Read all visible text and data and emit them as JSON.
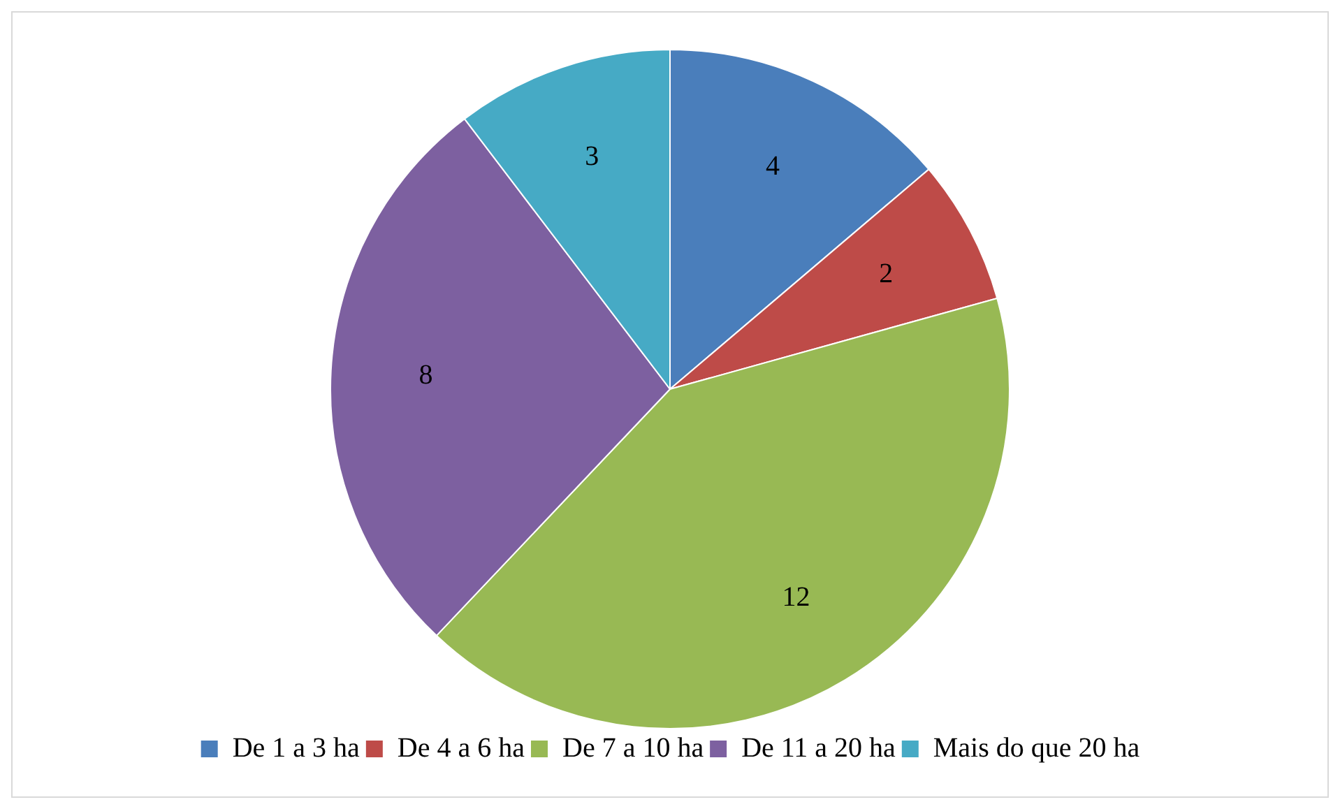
{
  "chart_data": {
    "type": "pie",
    "categories": [
      "De 1 a 3 ha",
      "De 4 a 6 ha",
      "De 7 a 10 ha",
      "De 11 a 20 ha",
      "Mais do que 20 ha"
    ],
    "values": [
      4,
      2,
      12,
      8,
      3
    ],
    "colors": [
      "#4a7ebb",
      "#be4b48",
      "#98b954",
      "#7d60a0",
      "#46aac5"
    ],
    "data_labels": true,
    "legend": "bottom"
  }
}
